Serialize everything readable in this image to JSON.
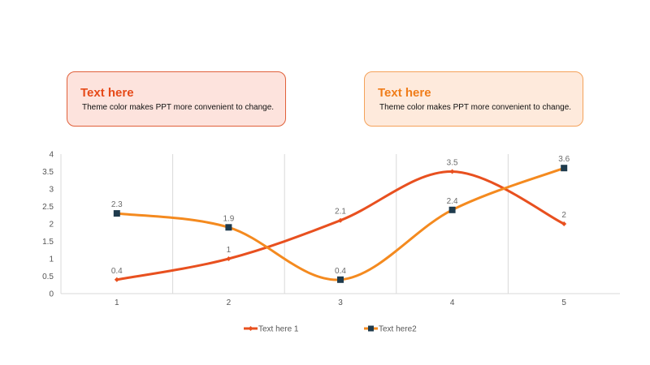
{
  "cards": [
    {
      "title": "Text here",
      "text": "Theme color makes PPT more convenient to change."
    },
    {
      "title": "Text here",
      "text": "Theme color makes PPT more convenient to change."
    }
  ],
  "chart_data": {
    "type": "line",
    "categories": [
      "1",
      "2",
      "3",
      "4",
      "5"
    ],
    "ylim": [
      0,
      4
    ],
    "yticks": [
      0,
      0.5,
      1,
      1.5,
      2,
      2.5,
      3,
      3.5,
      4
    ],
    "smooth": true,
    "grid": "vertical",
    "legend_position": "bottom",
    "series": [
      {
        "name": "Text here 1",
        "values": [
          0.4,
          1,
          2.1,
          3.5,
          2
        ],
        "color": "#e8501f",
        "marker": "diamond"
      },
      {
        "name": "Text here2",
        "values": [
          2.3,
          1.9,
          0.4,
          2.4,
          3.6
        ],
        "color": "#f48a1f",
        "marker": "square"
      }
    ]
  }
}
